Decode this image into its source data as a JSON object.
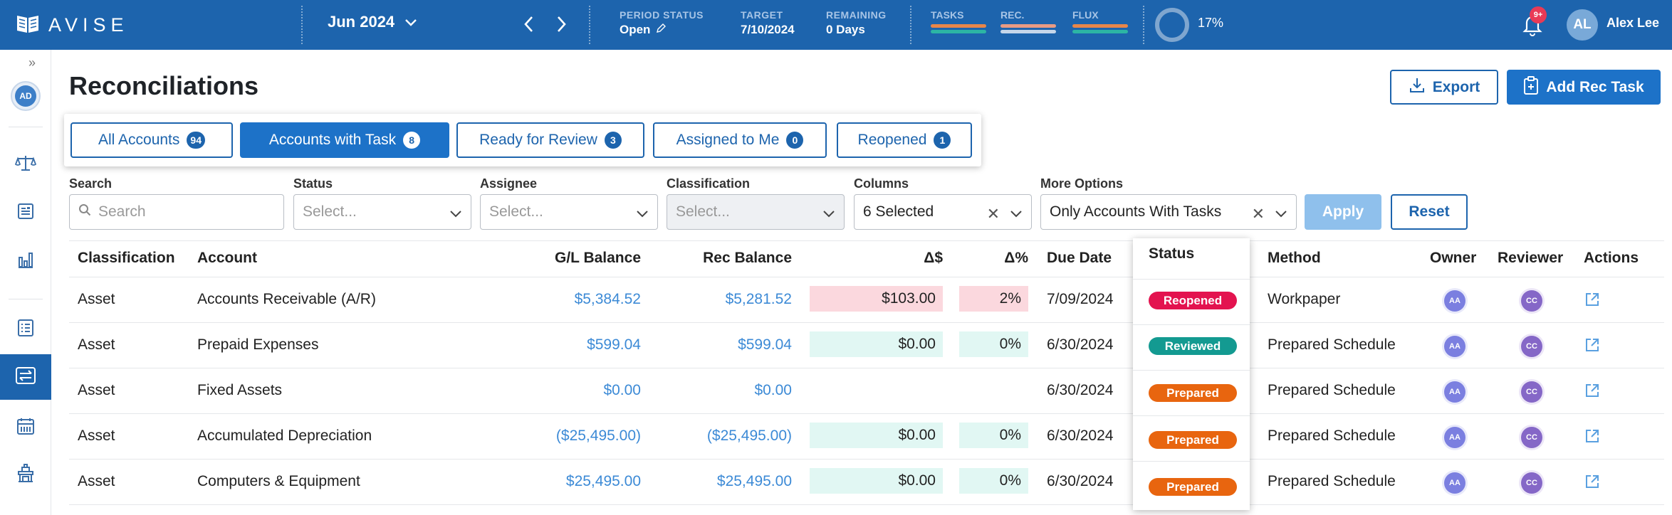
{
  "app": {
    "name": "AVISE"
  },
  "topbar": {
    "period": "Jun 2024",
    "period_status_label": "PERIOD STATUS",
    "period_status_value": "Open",
    "target_label": "TARGET",
    "target_value": "7/10/2024",
    "remaining_label": "REMAINING",
    "remaining_value": "0 Days",
    "tasks_label": "TASKS",
    "rec_label": "REC.",
    "flux_label": "FLUX",
    "progress_text": "17%",
    "progress_value": 0.17,
    "notification_badge": "9+",
    "user_initials": "AL",
    "user_name": "Alex Lee"
  },
  "sidebar": {
    "avatar_initials": "AD",
    "active_item": "reconciliations"
  },
  "page": {
    "title": "Reconciliations",
    "export_label": "Export",
    "add_label": "Add Rec Task"
  },
  "tabs": [
    {
      "label": "All Accounts",
      "count": "94",
      "active": false
    },
    {
      "label": "Accounts with Task",
      "count": "8",
      "active": true
    },
    {
      "label": "Ready for Review",
      "count": "3",
      "active": false
    },
    {
      "label": "Assigned to Me",
      "count": "0",
      "active": false
    },
    {
      "label": "Reopened",
      "count": "1",
      "active": false
    }
  ],
  "filters": {
    "search_label": "Search",
    "search_placeholder": "Search",
    "status_label": "Status",
    "status_placeholder": "Select...",
    "assignee_label": "Assignee",
    "assignee_placeholder": "Select...",
    "classification_label": "Classification",
    "classification_placeholder": "Select...",
    "columns_label": "Columns",
    "columns_value": "6 Selected",
    "more_label": "More Options",
    "more_value": "Only Accounts With Tasks",
    "apply_label": "Apply",
    "reset_label": "Reset"
  },
  "table": {
    "headers": [
      "Classification",
      "Account",
      "G/L Balance",
      "Rec Balance",
      "Δ$",
      "Δ%",
      "Due Date",
      "Status",
      "Method",
      "Owner",
      "Reviewer",
      "Actions"
    ],
    "rows": [
      {
        "classification": "Asset",
        "account": "Accounts Receivable (A/R)",
        "gl": "$5,384.52",
        "rec": "$5,281.52",
        "delta": "$103.00",
        "delta_pct": "2%",
        "due": "7/09/2024",
        "status": "Reopened",
        "method": "Workpaper",
        "owner": "AA",
        "reviewer": "CC",
        "variance": "pink"
      },
      {
        "classification": "Asset",
        "account": "Prepaid Expenses",
        "gl": "$599.04",
        "rec": "$599.04",
        "delta": "$0.00",
        "delta_pct": "0%",
        "due": "6/30/2024",
        "status": "Reviewed",
        "method": "Prepared Schedule",
        "owner": "AA",
        "reviewer": "CC",
        "variance": "mint"
      },
      {
        "classification": "Asset",
        "account": "Fixed Assets",
        "gl": "$0.00",
        "rec": "$0.00",
        "delta": "",
        "delta_pct": "",
        "due": "6/30/2024",
        "status": "Prepared",
        "method": "Prepared Schedule",
        "owner": "AA",
        "reviewer": "CC",
        "variance": "none"
      },
      {
        "classification": "Asset",
        "account": "Accumulated Depreciation",
        "gl": "($25,495.00)",
        "rec": "($25,495.00)",
        "delta": "$0.00",
        "delta_pct": "0%",
        "due": "6/30/2024",
        "status": "Prepared",
        "method": "Prepared Schedule",
        "owner": "AA",
        "reviewer": "CC",
        "variance": "mint"
      },
      {
        "classification": "Asset",
        "account": "Computers & Equipment",
        "gl": "$25,495.00",
        "rec": "$25,495.00",
        "delta": "$0.00",
        "delta_pct": "0%",
        "due": "6/30/2024",
        "status": "Prepared",
        "method": "Prepared Schedule",
        "owner": "AA",
        "reviewer": "CC",
        "variance": "mint"
      }
    ]
  },
  "colors": {
    "brand": "#1d64ad",
    "reopened": "#e3134f",
    "reviewed": "#139a91",
    "prepared": "#e8650f",
    "tasks_bar": "#e8864a",
    "tasks_bar2": "#2cb5a4",
    "rec_bar": "#e89b84",
    "flux_bar": "#e8864a"
  },
  "icons": [
    "book-logo-icon",
    "chevron-down-icon",
    "chevron-left-icon",
    "chevron-right-icon",
    "pencil-icon",
    "bell-icon",
    "expand-icon",
    "scale-icon",
    "document-icon",
    "bar-chart-icon",
    "checklist-icon",
    "transfer-icon",
    "calendar-icon",
    "bank-icon",
    "download-icon",
    "clipboard-plus-icon",
    "search-icon",
    "close-icon",
    "external-link-icon"
  ]
}
